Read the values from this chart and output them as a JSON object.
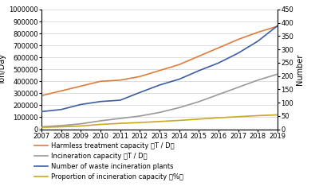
{
  "years": [
    2007,
    2008,
    2009,
    2010,
    2011,
    2012,
    2013,
    2014,
    2015,
    2016,
    2017,
    2018,
    2019
  ],
  "harmless_treatment": [
    280000,
    320000,
    360000,
    400000,
    410000,
    440000,
    490000,
    540000,
    610000,
    680000,
    750000,
    810000,
    860000
  ],
  "incineration_capacity": [
    20000,
    30000,
    45000,
    70000,
    90000,
    110000,
    140000,
    180000,
    230000,
    290000,
    350000,
    410000,
    460000
  ],
  "num_plants": [
    66,
    74,
    93,
    104,
    109,
    138,
    166,
    188,
    220,
    249,
    286,
    331,
    389
  ],
  "proportion": [
    7,
    9,
    12,
    18,
    22,
    25,
    29,
    33,
    38,
    43,
    47,
    51,
    54
  ],
  "harmless_color": "#e07b39",
  "incineration_color": "#999999",
  "num_plants_color": "#3b5fa0",
  "proportion_color": "#c8a820",
  "left_ylim": [
    0,
    1000000
  ],
  "left_yticks": [
    0,
    100000,
    200000,
    300000,
    400000,
    500000,
    600000,
    700000,
    800000,
    900000,
    1000000
  ],
  "right_ylim": [
    0,
    450
  ],
  "right_yticks": [
    0,
    50,
    100,
    150,
    200,
    250,
    300,
    350,
    400,
    450
  ],
  "ylabel_left": "Ton/Day",
  "ylabel_right": "Number",
  "legend_labels": [
    "Harmless treatment capacity （T / D）",
    "Incineration capacity （T / D）",
    "Number of waste incineration plants",
    "Proportion of incineration capacity （%）"
  ],
  "background_color": "#ffffff",
  "grid_color": "#d0d0d0"
}
